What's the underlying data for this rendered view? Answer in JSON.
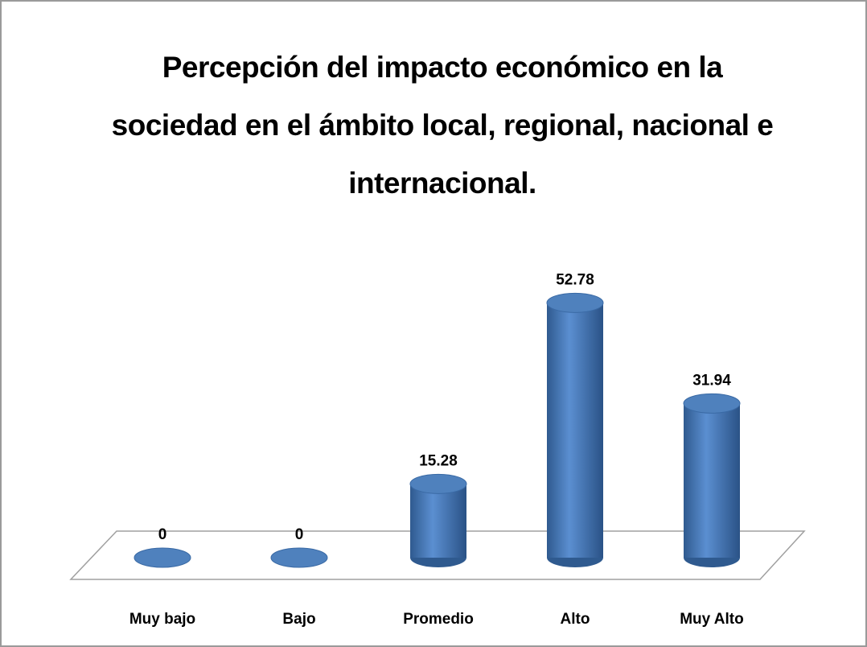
{
  "chart_data": {
    "type": "cylinder",
    "title": "Percepción del impacto económico en la sociedad en el ámbito local, regional, nacional e internacional.",
    "categories": [
      "Muy bajo",
      "Bajo",
      "Promedio",
      "Alto",
      "Muy Alto"
    ],
    "values": [
      0,
      0,
      15.28,
      52.78,
      31.94
    ],
    "color": "#4f81bd"
  }
}
